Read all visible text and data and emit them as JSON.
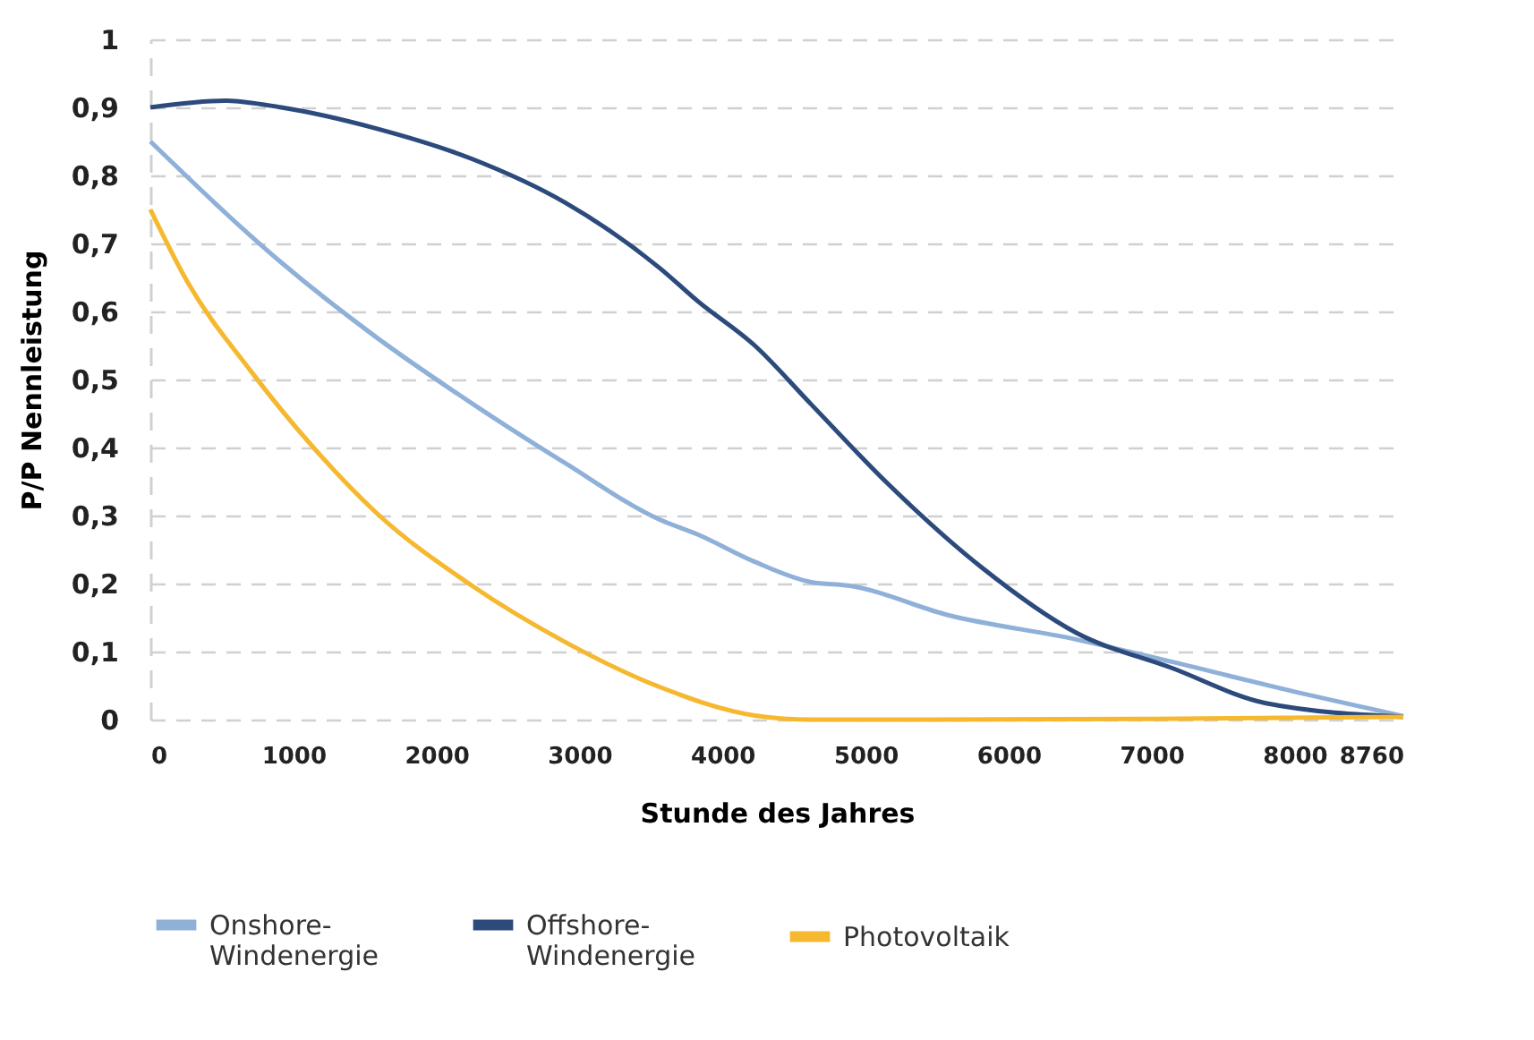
{
  "chart_data": {
    "type": "line",
    "xlabel": "Stunde des Jahres",
    "ylabel": "P/P Nennleistung",
    "xlim": [
      0,
      8760
    ],
    "xticks": [
      0,
      1000,
      2000,
      3000,
      4000,
      5000,
      6000,
      7000,
      8000,
      8760
    ],
    "ylim": [
      0,
      1
    ],
    "yticks": [
      0,
      {
        "value": 0.1,
        "label": "0,1"
      },
      {
        "value": 0.2,
        "label": "0,2"
      },
      {
        "value": 0.3,
        "label": "0,3"
      },
      {
        "value": 0.4,
        "label": "0,4"
      },
      {
        "value": 0.5,
        "label": "0,5"
      },
      {
        "value": 0.6,
        "label": "0,6"
      },
      {
        "value": 0.7,
        "label": "0,7"
      },
      {
        "value": 0.8,
        "label": "0,8"
      },
      {
        "value": 0.9,
        "label": "0,9"
      },
      1
    ],
    "grid": "y",
    "legend": "bottom",
    "line_style": "solid",
    "marker": "none",
    "series": [
      {
        "name": "Onshore-Windenergie",
        "color": "#8fb0d8",
        "x": [
          0,
          915,
          1580,
          2240,
          2900,
          3560,
          3828,
          4225,
          4622,
          4880,
          5590,
          6470,
          7140,
          8020,
          8760
        ],
        "values": [
          0.85,
          0.672,
          0.562,
          0.466,
          0.377,
          0.294,
          0.272,
          0.232,
          0.202,
          0.197,
          0.153,
          0.118,
          0.085,
          0.04,
          0.005
        ]
      },
      {
        "name": "Offshore-Windenergie",
        "color": "#2c4a7c",
        "x": [
          0,
          520,
          915,
          1580,
          2240,
          2900,
          3560,
          3828,
          4225,
          4622,
          5150,
          5810,
          6470,
          7140,
          7800,
          8760
        ],
        "values": [
          0.9,
          0.91,
          0.9,
          0.869,
          0.825,
          0.76,
          0.664,
          0.615,
          0.55,
          0.463,
          0.348,
          0.224,
          0.128,
          0.076,
          0.024,
          0.004
        ]
      },
      {
        "name": "Photovoltaik",
        "color": "#f5b82e",
        "x": [
          0,
          255,
          700,
          1140,
          1580,
          2240,
          2900,
          3560,
          4225,
          4622,
          5500,
          7000,
          8760
        ],
        "values": [
          0.75,
          0.645,
          0.513,
          0.4,
          0.304,
          0.198,
          0.114,
          0.048,
          0.006,
          0,
          0,
          0.001,
          0.004
        ]
      }
    ]
  }
}
